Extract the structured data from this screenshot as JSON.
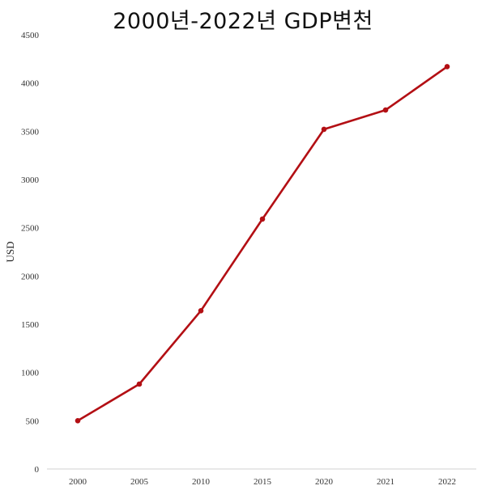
{
  "chart_data": {
    "type": "line",
    "title": "2000년-2022년 GDP변천",
    "xlabel": "",
    "ylabel": "USD",
    "categories": [
      "2000",
      "2005",
      "2010",
      "2015",
      "2020",
      "2021",
      "2022"
    ],
    "series": [
      {
        "values": [
          500,
          880,
          1640,
          2590,
          3520,
          3720,
          4170
        ]
      }
    ],
    "ylim": [
      0,
      4500
    ],
    "yticks": [
      0,
      500,
      1000,
      1500,
      2000,
      2500,
      3000,
      3500,
      4000,
      4500
    ],
    "grid": false,
    "legend": "none",
    "line_color": "#b30f14"
  }
}
